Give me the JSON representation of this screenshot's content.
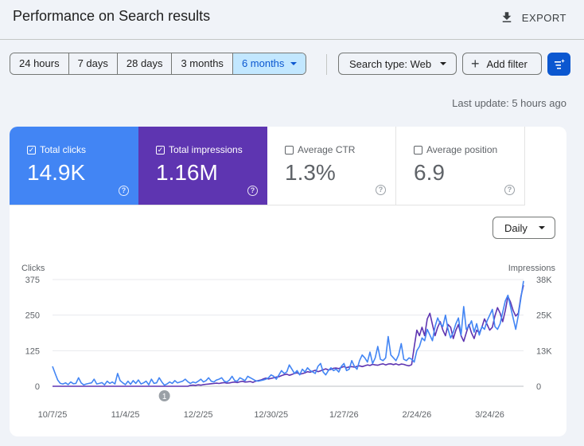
{
  "header": {
    "title": "Performance on Search results",
    "export_label": "EXPORT"
  },
  "date_filters": [
    {
      "label": "24 hours",
      "active": false
    },
    {
      "label": "7 days",
      "active": false
    },
    {
      "label": "28 days",
      "active": false
    },
    {
      "label": "3 months",
      "active": false
    },
    {
      "label": "6 months",
      "active": true
    }
  ],
  "search_type_label": "Search type: Web",
  "add_filter_label": "Add filter",
  "last_update": "Last update: 5 hours ago",
  "metrics": {
    "clicks": {
      "label": "Total clicks",
      "value": "14.9K",
      "checked": true,
      "color": "#4285f4"
    },
    "impressions": {
      "label": "Total impressions",
      "value": "1.16M",
      "checked": true,
      "color": "#5e35b1"
    },
    "ctr": {
      "label": "Average CTR",
      "value": "1.3%",
      "checked": false
    },
    "position": {
      "label": "Average position",
      "value": "6.9",
      "checked": false
    }
  },
  "granularity": "Daily",
  "icons": {
    "export": "download-icon",
    "add_filter": "plus-icon",
    "settings": "filter-settings-icon",
    "help": "help-icon",
    "dropdown": "caret-down-icon"
  },
  "chart_data": {
    "type": "line",
    "left_axis": {
      "label": "Clicks",
      "ticks": [
        "375",
        "250",
        "125",
        "0"
      ],
      "range": [
        0,
        375
      ]
    },
    "right_axis": {
      "label": "Impressions",
      "ticks": [
        "38K",
        "25K",
        "13K",
        "0"
      ],
      "range": [
        0,
        38000
      ]
    },
    "x_ticks": [
      "10/7/25",
      "11/4/25",
      "12/2/25",
      "12/30/25",
      "1/27/26",
      "2/24/26",
      "3/24/26"
    ],
    "x_tick_positions": [
      0,
      28,
      56,
      84,
      112,
      140,
      168
    ],
    "x_range": [
      0,
      181
    ],
    "grid": true,
    "annotation": {
      "label": "1",
      "day": 43
    },
    "series": [
      {
        "name": "Clicks",
        "axis": "left",
        "color": "#4285f4",
        "values": [
          70,
          45,
          22,
          10,
          8,
          12,
          6,
          15,
          9,
          10,
          30,
          12,
          5,
          8,
          10,
          12,
          25,
          8,
          10,
          13,
          5,
          18,
          10,
          15,
          8,
          45,
          20,
          12,
          6,
          18,
          7,
          20,
          10,
          22,
          8,
          12,
          18,
          5,
          25,
          10,
          12,
          30,
          15,
          4,
          8,
          15,
          10,
          20,
          12,
          15,
          18,
          25,
          16,
          10,
          15,
          12,
          18,
          25,
          15,
          20,
          30,
          18,
          15,
          22,
          25,
          30,
          18,
          15,
          22,
          35,
          20,
          18,
          30,
          25,
          20,
          35,
          30,
          25,
          20,
          18,
          20,
          22,
          25,
          30,
          40,
          35,
          25,
          40,
          55,
          45,
          50,
          75,
          60,
          45,
          55,
          40,
          60,
          50,
          65,
          55,
          50,
          45,
          70,
          80,
          50,
          40,
          55,
          65,
          55,
          60,
          50,
          70,
          80,
          55,
          60,
          90,
          70,
          60,
          90,
          110,
          100,
          85,
          120,
          80,
          100,
          140,
          95,
          90,
          100,
          175,
          110,
          100,
          90,
          110,
          150,
          95,
          90,
          100,
          95,
          85,
          125,
          140,
          170,
          160,
          200,
          180,
          160,
          210,
          240,
          220,
          210,
          250,
          200,
          170,
          190,
          220,
          240,
          180,
          280,
          200,
          210,
          230,
          190,
          220,
          180,
          210,
          200,
          230,
          250,
          270,
          210,
          200,
          220,
          260,
          300,
          320,
          280,
          240,
          200,
          250,
          310,
          370
        ]
      },
      {
        "name": "Impressions",
        "axis": "right",
        "color": "#5e35b1",
        "values": [
          0,
          0,
          0,
          0,
          0,
          0,
          0,
          0,
          0,
          0,
          0,
          0,
          0,
          0,
          0,
          0,
          0,
          0,
          0,
          0,
          0,
          0,
          0,
          0,
          0,
          0,
          0,
          0,
          0,
          0,
          0,
          0,
          0,
          0,
          0,
          0,
          0,
          0,
          0,
          0,
          0,
          0,
          0,
          0,
          0,
          0,
          0,
          0,
          0,
          0,
          0,
          0,
          0,
          300,
          400,
          300,
          500,
          400,
          600,
          700,
          800,
          900,
          1000,
          1100,
          1000,
          1200,
          1300,
          1100,
          1200,
          1400,
          1500,
          1300,
          1600,
          1800,
          1500,
          1600,
          1700,
          1400,
          1800,
          2000,
          2200,
          2600,
          2900,
          2600,
          2800,
          3000,
          3300,
          3400,
          3800,
          4100,
          4300,
          3900,
          4200,
          4600,
          4800,
          4300,
          4500,
          4800,
          5200,
          5000,
          5400,
          5700,
          5200,
          5500,
          5900,
          6200,
          5800,
          6000,
          6400,
          6500,
          6300,
          6700,
          7000,
          6600,
          6900,
          7000,
          6800,
          7100,
          7300,
          7000,
          7300,
          7600,
          7400,
          7800,
          7600,
          7500,
          7800,
          8000,
          7600,
          7900,
          8000,
          7700,
          8000,
          7600,
          7900,
          7800,
          7500,
          7300,
          7700,
          14000,
          20000,
          18000,
          21000,
          18000,
          24000,
          26000,
          22000,
          18000,
          21000,
          23000,
          20000,
          18000,
          22000,
          21000,
          17000,
          20000,
          22000,
          18000,
          16000,
          19000,
          22000,
          19000,
          17000,
          20000,
          19000,
          21000,
          24000,
          22000,
          20000,
          21000,
          25000,
          28000,
          26000,
          23000,
          27000,
          32000,
          30000,
          27000,
          25000,
          26000,
          32000,
          36000
        ]
      }
    ]
  }
}
